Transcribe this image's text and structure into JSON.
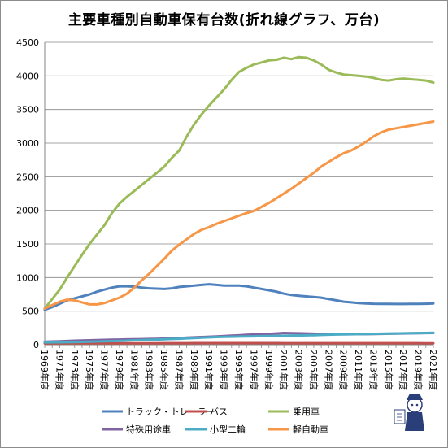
{
  "chart_data": {
    "type": "line",
    "title": "主要車種別自動車保有台数(折れ線グラフ、万台)",
    "xlabel": "",
    "ylabel": "",
    "ylim": [
      0,
      4500
    ],
    "yticks": [
      0,
      500,
      1000,
      1500,
      2000,
      2500,
      3000,
      3500,
      4000,
      4500
    ],
    "grid": true,
    "legend_position": "bottom",
    "x_tick_labels": [
      "1969年度",
      "1971年度",
      "1973年度",
      "1975年度",
      "1977年度",
      "1979年度",
      "1981年度",
      "1983年度",
      "1985年度",
      "1987年度",
      "1989年度",
      "1991年度",
      "1993年度",
      "1995年度",
      "1997年度",
      "1999年度",
      "2001年度",
      "2003年度",
      "2005年度",
      "2007年度",
      "2009年度",
      "2011年度",
      "2013年度",
      "2015年度",
      "2017年度",
      "2019年度",
      "2021年度"
    ],
    "x": [
      1969,
      1970,
      1971,
      1972,
      1973,
      1974,
      1975,
      1976,
      1977,
      1978,
      1979,
      1980,
      1981,
      1982,
      1983,
      1984,
      1985,
      1986,
      1987,
      1988,
      1989,
      1990,
      1991,
      1992,
      1993,
      1994,
      1995,
      1996,
      1997,
      1998,
      1999,
      2000,
      2001,
      2002,
      2003,
      2004,
      2005,
      2006,
      2007,
      2008,
      2009,
      2010,
      2011,
      2012,
      2013,
      2014,
      2015,
      2016,
      2017,
      2018,
      2019,
      2020,
      2021
    ],
    "series": [
      {
        "name": "トラック・トレーラー",
        "color": "#4f81bd",
        "values": [
          520,
          560,
          610,
          660,
          690,
          720,
          750,
          790,
          820,
          850,
          870,
          870,
          865,
          850,
          840,
          835,
          830,
          840,
          860,
          870,
          880,
          890,
          900,
          890,
          880,
          880,
          880,
          870,
          850,
          830,
          810,
          790,
          760,
          740,
          730,
          720,
          710,
          700,
          680,
          660,
          640,
          630,
          620,
          615,
          610,
          608,
          607,
          606,
          606,
          607,
          607,
          610,
          615
        ]
      },
      {
        "name": "バス",
        "color": "#c0504d",
        "values": [
          19,
          20,
          21,
          22,
          22,
          22,
          22,
          22,
          22,
          22,
          22,
          22,
          22,
          22,
          22,
          22,
          23,
          23,
          23,
          23,
          24,
          24,
          24,
          24,
          24,
          24,
          24,
          24,
          24,
          24,
          24,
          24,
          23,
          23,
          23,
          23,
          23,
          23,
          23,
          23,
          23,
          23,
          23,
          23,
          23,
          23,
          23,
          23,
          23,
          23,
          23,
          22,
          22
        ]
      },
      {
        "name": "乗用車",
        "color": "#9bbb59",
        "values": [
          540,
          680,
          820,
          1000,
          1170,
          1340,
          1500,
          1640,
          1780,
          1960,
          2100,
          2200,
          2290,
          2380,
          2470,
          2560,
          2650,
          2780,
          2890,
          3100,
          3280,
          3430,
          3560,
          3680,
          3800,
          3940,
          4060,
          4120,
          4170,
          4200,
          4230,
          4240,
          4270,
          4250,
          4280,
          4270,
          4230,
          4170,
          4090,
          4050,
          4020,
          4010,
          4000,
          3990,
          3970,
          3940,
          3930,
          3950,
          3960,
          3950,
          3940,
          3930,
          3900
        ]
      },
      {
        "name": "特殊用途車",
        "color": "#8064a2",
        "values": [
          45,
          48,
          52,
          56,
          60,
          63,
          66,
          70,
          72,
          75,
          78,
          80,
          82,
          84,
          86,
          88,
          92,
          95,
          100,
          105,
          110,
          115,
          120,
          125,
          130,
          135,
          140,
          148,
          152,
          158,
          162,
          168,
          175,
          172,
          170,
          168,
          165,
          162,
          160,
          158,
          157,
          157,
          158,
          158,
          160,
          162,
          164,
          166,
          168,
          170,
          172,
          174,
          175
        ]
      },
      {
        "name": "小型二輪",
        "color": "#4bacc6",
        "values": [
          35,
          35,
          36,
          38,
          40,
          42,
          45,
          48,
          52,
          55,
          58,
          62,
          66,
          70,
          74,
          78,
          82,
          86,
          90,
          95,
          100,
          105,
          110,
          115,
          118,
          120,
          122,
          124,
          126,
          128,
          130,
          132,
          134,
          136,
          138,
          140,
          143,
          146,
          150,
          152,
          154,
          156,
          158,
          160,
          162,
          164,
          166,
          168,
          170,
          172,
          174,
          176,
          178
        ]
      },
      {
        "name": "軽自動車",
        "color": "#f79646",
        "values": [
          540,
          590,
          640,
          670,
          660,
          630,
          600,
          600,
          620,
          660,
          700,
          760,
          850,
          960,
          1060,
          1170,
          1280,
          1400,
          1490,
          1570,
          1650,
          1710,
          1750,
          1800,
          1840,
          1880,
          1920,
          1960,
          1990,
          2050,
          2110,
          2180,
          2250,
          2320,
          2400,
          2480,
          2560,
          2650,
          2720,
          2790,
          2850,
          2890,
          2950,
          3020,
          3100,
          3160,
          3200,
          3220,
          3240,
          3260,
          3280,
          3300,
          3320
        ]
      }
    ]
  }
}
